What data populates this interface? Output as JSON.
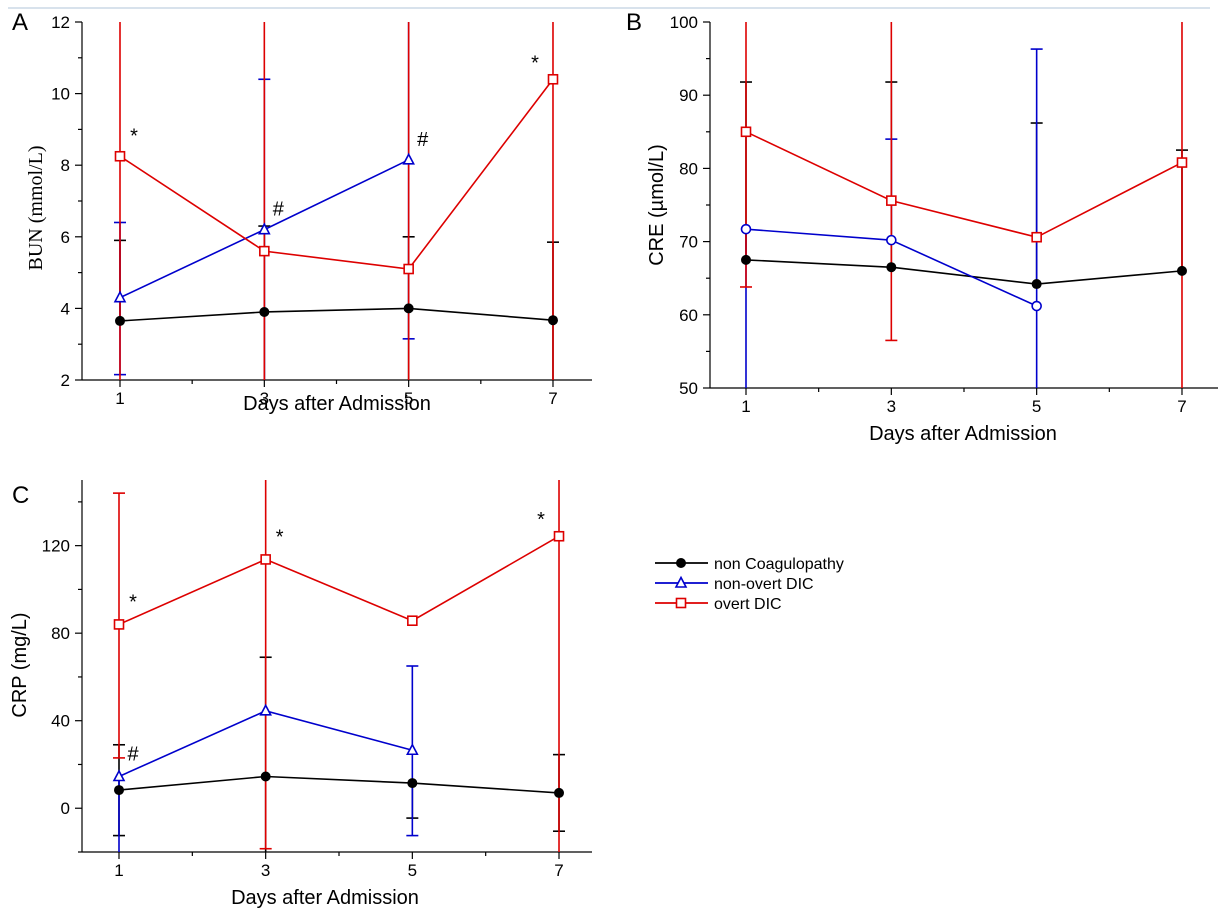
{
  "legend": [
    {
      "name": "non Coagulopathy",
      "color": "#000000",
      "marker": "filled-circle"
    },
    {
      "name": "non-overt DIC",
      "color": "#0000cc",
      "marker": "open-triangle"
    },
    {
      "name": "overt DIC",
      "color": "#dd0000",
      "marker": "open-square"
    }
  ],
  "chart_data": [
    {
      "panel": "A",
      "type": "line",
      "xlabel": "Days after Admission",
      "ylabel": "BUN (mmol/L)",
      "x": [
        1,
        3,
        5,
        7
      ],
      "xlim": [
        0.7,
        7.3
      ],
      "ylim": [
        2,
        12
      ],
      "yticks": [
        2,
        4,
        6,
        8,
        10,
        12
      ],
      "grid": false,
      "series": [
        {
          "name": "non Coagulopathy",
          "y": [
            3.65,
            3.9,
            4.0,
            3.67
          ],
          "err_low": [
            null,
            2.0,
            2.0,
            2.0
          ],
          "err_high": [
            5.9,
            6.3,
            6.0,
            5.85
          ]
        },
        {
          "name": "non-overt DIC",
          "y": [
            4.3,
            6.2,
            8.15,
            null
          ],
          "err_low": [
            2.15,
            2.0,
            3.15,
            null
          ],
          "err_high": [
            6.4,
            10.4,
            12.0,
            null
          ]
        },
        {
          "name": "overt DIC",
          "y": [
            8.25,
            5.6,
            5.1,
            10.4
          ],
          "err_low": [
            2.0,
            2.0,
            2.0,
            2.0
          ],
          "err_high": [
            12.0,
            12.0,
            12.0,
            12.0
          ]
        }
      ],
      "annotations": [
        {
          "text": "*",
          "x": 1,
          "series": "overt DIC"
        },
        {
          "text": "#",
          "x": 3,
          "series": "non-overt DIC"
        },
        {
          "text": "#",
          "x": 5,
          "series": "non-overt DIC"
        },
        {
          "text": "*",
          "x": 7,
          "series": "overt DIC"
        }
      ]
    },
    {
      "panel": "B",
      "type": "line",
      "xlabel": "Days after Admission",
      "ylabel": "CRE (µmol/L)",
      "x": [
        1,
        3,
        5,
        7
      ],
      "xlim": [
        0.7,
        7.3
      ],
      "ylim": [
        50,
        100
      ],
      "yticks": [
        50,
        60,
        70,
        80,
        90,
        100
      ],
      "grid": false,
      "series": [
        {
          "name": "non Coagulopathy",
          "y": [
            67.5,
            66.5,
            64.2,
            66.0
          ],
          "err_low": [
            null,
            null,
            null,
            null
          ],
          "err_high": [
            91.8,
            91.8,
            86.2,
            82.5
          ]
        },
        {
          "name": "non-overt DIC",
          "y": [
            71.7,
            70.2,
            61.2,
            null
          ],
          "err_low": [
            50,
            null,
            50,
            null
          ],
          "err_high": [
            null,
            84.0,
            96.3,
            null
          ]
        },
        {
          "name": "overt DIC",
          "y": [
            85.0,
            75.6,
            70.6,
            80.8
          ],
          "err_low": [
            63.8,
            56.5,
            null,
            50
          ],
          "err_high": [
            100,
            100,
            null,
            100
          ]
        }
      ],
      "annotations": []
    },
    {
      "panel": "C",
      "type": "line",
      "xlabel": "Days after Admission",
      "ylabel": "CRP (mg/L)",
      "x": [
        1,
        3,
        5,
        7
      ],
      "xlim": [
        0.7,
        7.3
      ],
      "ylim": [
        -20,
        150
      ],
      "yticks": [
        0,
        40,
        80,
        120
      ],
      "grid": false,
      "series": [
        {
          "name": "non Coagulopathy",
          "y": [
            8.3,
            14.5,
            11.5,
            7.0
          ],
          "err_low": [
            -12.5,
            -20,
            -4.5,
            -10.5
          ],
          "err_high": [
            29.0,
            69.0,
            null,
            24.5
          ]
        },
        {
          "name": "non-overt DIC",
          "y": [
            14.5,
            44.5,
            26.5,
            null
          ],
          "err_low": [
            -20,
            null,
            -12.5,
            null
          ],
          "err_high": [
            null,
            null,
            65.0,
            null
          ]
        },
        {
          "name": "overt DIC",
          "y": [
            84.0,
            113.7,
            85.7,
            124.3
          ],
          "err_low": [
            23.0,
            -18.5,
            null,
            -20
          ],
          "err_high": [
            144.0,
            150,
            null,
            150
          ]
        }
      ],
      "annotations": [
        {
          "text": "*",
          "x": 1,
          "series": "overt DIC"
        },
        {
          "text": "#",
          "x": 1,
          "series": "non-overt DIC"
        },
        {
          "text": "*",
          "x": 3,
          "series": "overt DIC"
        },
        {
          "text": "*",
          "x": 7,
          "series": "overt DIC"
        }
      ]
    }
  ]
}
